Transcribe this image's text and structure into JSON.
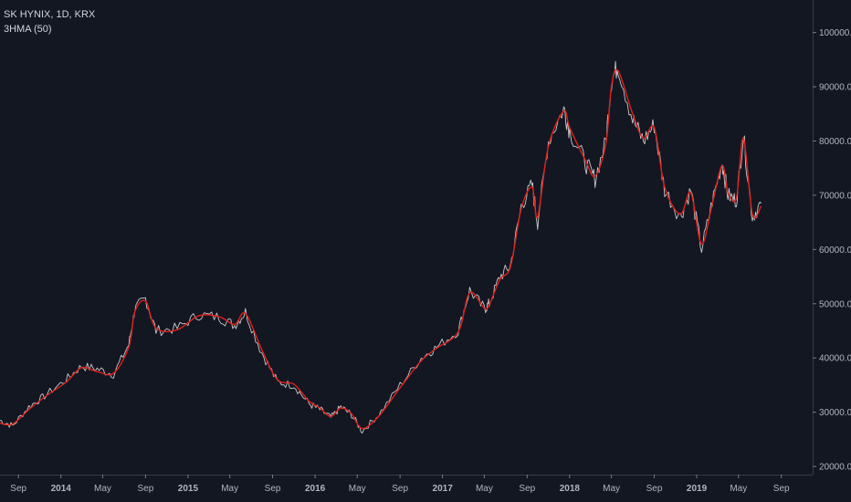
{
  "chart_data": {
    "type": "line",
    "title": "SK HYNIX, 1D, KRX",
    "indicator": "3HMA (50)",
    "colors": {
      "background": "#131722",
      "price": "#c8c8c8",
      "indicator": "#e0201b",
      "axis": "#787b86"
    },
    "ylim": [
      18500,
      106000
    ],
    "y_ticks": [
      "20000.0",
      "30000.0",
      "40000.0",
      "50000.0",
      "60000.0",
      "70000.0",
      "80000.0",
      "90000.0",
      "100000.0"
    ],
    "y_tick_values": [
      20000,
      30000,
      40000,
      50000,
      60000,
      70000,
      80000,
      90000,
      100000
    ],
    "x_ticks": [
      "Sep",
      "2014",
      "May",
      "Sep",
      "2015",
      "May",
      "Sep",
      "2016",
      "May",
      "Sep",
      "2017",
      "May",
      "Sep",
      "2018",
      "May",
      "Sep",
      "2019",
      "May",
      "Sep"
    ],
    "x_tick_dates": [
      "2013-09-01",
      "2014-01-01",
      "2014-05-01",
      "2014-09-01",
      "2015-01-01",
      "2015-05-01",
      "2015-09-01",
      "2016-01-01",
      "2016-05-01",
      "2016-09-01",
      "2017-01-01",
      "2017-05-01",
      "2017-09-01",
      "2018-01-01",
      "2018-05-01",
      "2018-09-01",
      "2019-01-01",
      "2019-05-01",
      "2019-09-01"
    ],
    "x_range": [
      "2013-07-10",
      "2019-11-30"
    ],
    "x_bold": [
      "2014",
      "2015",
      "2016",
      "2017",
      "2018",
      "2019"
    ],
    "series": [
      {
        "x": [
          "2013-07-10",
          "2013-08-15",
          "2013-10-01",
          "2013-11-15",
          "2014-01-15",
          "2014-03-01",
          "2014-04-15",
          "2014-06-01",
          "2014-07-15",
          "2014-08-01",
          "2014-09-01",
          "2014-10-01",
          "2014-12-01",
          "2015-02-01",
          "2015-04-01",
          "2015-05-15",
          "2015-06-15",
          "2015-08-01",
          "2015-09-15",
          "2015-11-01",
          "2015-12-15",
          "2016-01-15",
          "2016-02-15",
          "2016-03-15",
          "2016-04-15",
          "2016-05-15",
          "2016-07-01",
          "2016-09-01",
          "2016-11-01",
          "2016-12-15",
          "2017-02-15",
          "2017-03-20",
          "2017-05-01",
          "2017-05-15",
          "2017-06-15",
          "2017-07-15",
          "2017-08-15",
          "2017-09-15",
          "2017-10-01",
          "2017-11-01",
          "2017-12-15",
          "2018-01-01",
          "2018-02-15",
          "2018-03-15",
          "2018-04-15",
          "2018-05-01",
          "2018-05-20",
          "2018-07-01",
          "2018-08-01",
          "2018-09-01",
          "2018-10-01",
          "2018-11-15",
          "2018-12-15",
          "2019-01-15",
          "2019-02-15",
          "2019-03-15",
          "2019-04-01",
          "2019-04-25",
          "2019-05-15",
          "2019-06-10",
          "2019-07-05"
        ],
        "values": [
          28500,
          27500,
          31000,
          33000,
          36000,
          38500,
          38000,
          37000,
          42500,
          49000,
          51000,
          45000,
          45500,
          48000,
          47500,
          46000,
          48500,
          41000,
          35500,
          35000,
          31500,
          30500,
          29000,
          31000,
          29500,
          26500,
          29500,
          35000,
          40000,
          42000,
          45000,
          52500,
          49000,
          50000,
          55000,
          57000,
          68000,
          72000,
          65000,
          80000,
          86000,
          82000,
          76000,
          73000,
          80000,
          91000,
          94000,
          84000,
          80000,
          83000,
          71000,
          66000,
          71000,
          60000,
          69000,
          76000,
          70000,
          69000,
          81000,
          66000,
          68500
        ]
      },
      {
        "name": "",
        "x": [
          "2013-07-10",
          "2013-08-15",
          "2013-10-01",
          "2013-11-15",
          "2014-01-15",
          "2014-03-01",
          "2014-04-15",
          "2014-06-01",
          "2014-07-15",
          "2014-08-01",
          "2014-09-01",
          "2014-10-01",
          "2014-12-01",
          "2015-02-01",
          "2015-04-01",
          "2015-05-15",
          "2015-06-15",
          "2015-08-01",
          "2015-09-15",
          "2015-11-01",
          "2015-12-15",
          "2016-01-15",
          "2016-02-15",
          "2016-03-15",
          "2016-04-15",
          "2016-05-15",
          "2016-07-01",
          "2016-09-01",
          "2016-11-01",
          "2016-12-15",
          "2017-02-15",
          "2017-03-20",
          "2017-05-01",
          "2017-05-15",
          "2017-06-15",
          "2017-07-15",
          "2017-08-15",
          "2017-09-15",
          "2017-10-01",
          "2017-11-01",
          "2017-12-15",
          "2018-01-01",
          "2018-02-15",
          "2018-03-15",
          "2018-04-15",
          "2018-05-01",
          "2018-05-20",
          "2018-07-01",
          "2018-08-01",
          "2018-09-01",
          "2018-10-01",
          "2018-11-15",
          "2018-12-15",
          "2019-01-15",
          "2019-02-15",
          "2019-03-15",
          "2019-04-01",
          "2019-04-25",
          "2019-05-15",
          "2019-06-10",
          "2019-07-05"
        ],
        "values": [
          28000,
          27800,
          30500,
          32800,
          35500,
          38200,
          37500,
          37200,
          42000,
          48500,
          50500,
          45500,
          45200,
          47800,
          47600,
          46200,
          48200,
          41500,
          36000,
          35200,
          32000,
          30800,
          29200,
          30800,
          29700,
          27000,
          29200,
          34500,
          39500,
          41800,
          44800,
          52000,
          49200,
          49800,
          54500,
          56800,
          67500,
          71500,
          66000,
          79000,
          85500,
          82500,
          76500,
          73500,
          79500,
          90000,
          93000,
          85000,
          80500,
          82500,
          71500,
          66500,
          70500,
          61000,
          68500,
          75500,
          70500,
          69500,
          80500,
          66500,
          68000
        ]
      }
    ]
  }
}
